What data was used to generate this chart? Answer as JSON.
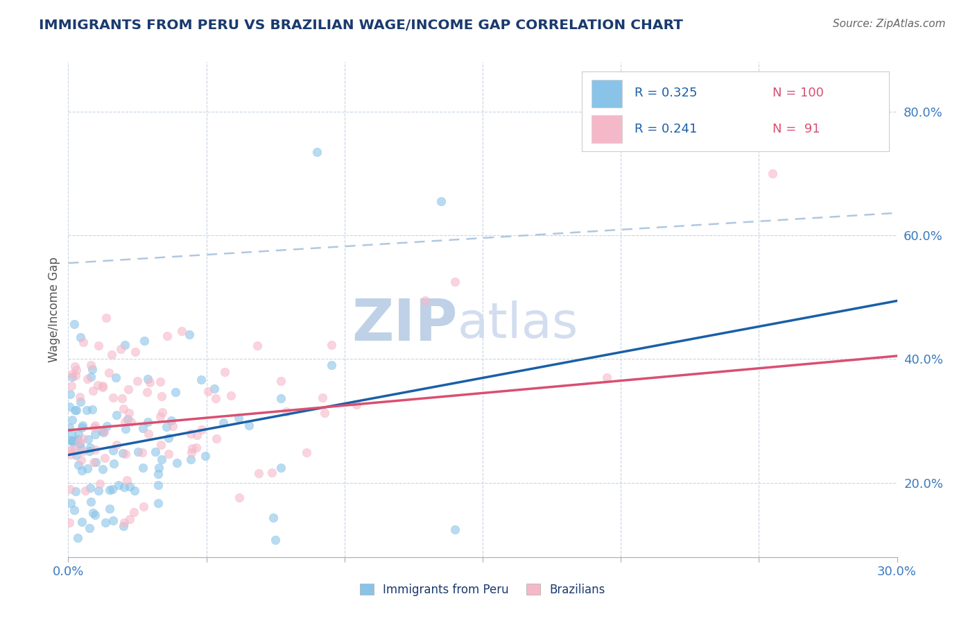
{
  "title": "IMMIGRANTS FROM PERU VS BRAZILIAN WAGE/INCOME GAP CORRELATION CHART",
  "source_text": "Source: ZipAtlas.com",
  "ylabel": "Wage/Income Gap",
  "xlim": [
    0.0,
    0.3
  ],
  "ylim": [
    0.08,
    0.88
  ],
  "xticks": [
    0.0,
    0.05,
    0.1,
    0.15,
    0.2,
    0.25,
    0.3
  ],
  "xtick_labels": [
    "0.0%",
    "",
    "",
    "",
    "",
    "",
    "30.0%"
  ],
  "ytick_labels": [
    "20.0%",
    "40.0%",
    "60.0%",
    "80.0%"
  ],
  "yticks": [
    0.2,
    0.4,
    0.6,
    0.8
  ],
  "blue_color": "#89c4e8",
  "pink_color": "#f5b8c8",
  "blue_line_color": "#1a5fa8",
  "pink_line_color": "#d94f70",
  "dashed_line_color": "#b0c8e0",
  "axis_label_color": "#3a7abf",
  "title_color": "#1a3a6e",
  "legend_r1": "R = 0.325",
  "legend_n1": "N = 100",
  "legend_r2": "R = 0.241",
  "legend_n2": "N =  91",
  "watermark_zip": "ZIP",
  "watermark_atlas": "atlas",
  "watermark_color": "#ccdcf0",
  "background_color": "#ffffff",
  "seed": 42,
  "n_blue": 100,
  "n_pink": 91,
  "blue_slope": 0.83,
  "blue_intercept": 0.245,
  "pink_slope": 0.4,
  "pink_intercept": 0.285,
  "dashed_slope": 0.27,
  "dashed_intercept": 0.555
}
